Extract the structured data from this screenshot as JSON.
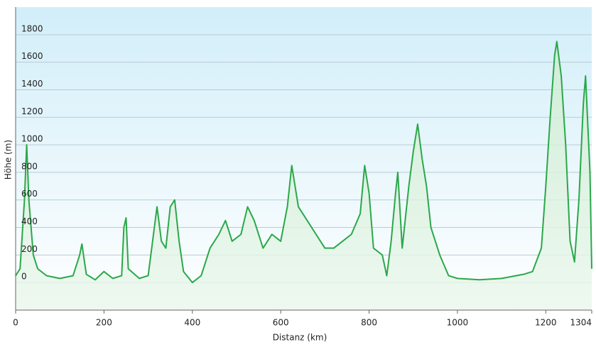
{
  "chart_data": {
    "type": "line",
    "x_label": "Distanz  (km)",
    "y_label": "Höhe (m)",
    "x": [
      0,
      10,
      20,
      25,
      30,
      40,
      50,
      70,
      100,
      130,
      145,
      150,
      160,
      180,
      200,
      220,
      240,
      245,
      250,
      255,
      280,
      300,
      310,
      320,
      330,
      340,
      350,
      360,
      370,
      380,
      400,
      420,
      440,
      460,
      475,
      490,
      510,
      525,
      540,
      560,
      580,
      600,
      615,
      625,
      640,
      660,
      680,
      700,
      720,
      740,
      760,
      780,
      790,
      800,
      810,
      830,
      840,
      850,
      860,
      865,
      875,
      890,
      900,
      910,
      920,
      930,
      940,
      950,
      960,
      980,
      1000,
      1050,
      1100,
      1150,
      1170,
      1190,
      1200,
      1210,
      1220,
      1225,
      1235,
      1245,
      1255,
      1265,
      1275,
      1285,
      1290,
      1300,
      1304
    ],
    "series": [
      {
        "color": "#2aa84a",
        "values": [
          50,
          100,
          600,
          1000,
          600,
          200,
          100,
          50,
          30,
          50,
          200,
          280,
          60,
          20,
          80,
          30,
          50,
          400,
          470,
          100,
          30,
          50,
          300,
          550,
          300,
          250,
          550,
          600,
          300,
          80,
          0,
          50,
          250,
          350,
          450,
          300,
          350,
          550,
          450,
          250,
          350,
          300,
          550,
          850,
          550,
          450,
          350,
          250,
          250,
          300,
          350,
          500,
          850,
          650,
          250,
          200,
          50,
          300,
          650,
          800,
          250,
          700,
          950,
          1150,
          900,
          700,
          400,
          300,
          200,
          50,
          30,
          20,
          30,
          60,
          80,
          250,
          700,
          1200,
          1650,
          1750,
          1500,
          1000,
          300,
          150,
          600,
          1300,
          1500,
          800,
          100
        ]
      }
    ],
    "xlim": [
      0,
      1304
    ],
    "xticks": [
      0,
      200,
      400,
      600,
      800,
      1000,
      1200,
      1304
    ],
    "ylim": [
      -200,
      2000
    ],
    "yticks": [
      0,
      200,
      400,
      600,
      800,
      1000,
      1200,
      1400,
      1600,
      1800
    ],
    "grid": true
  }
}
